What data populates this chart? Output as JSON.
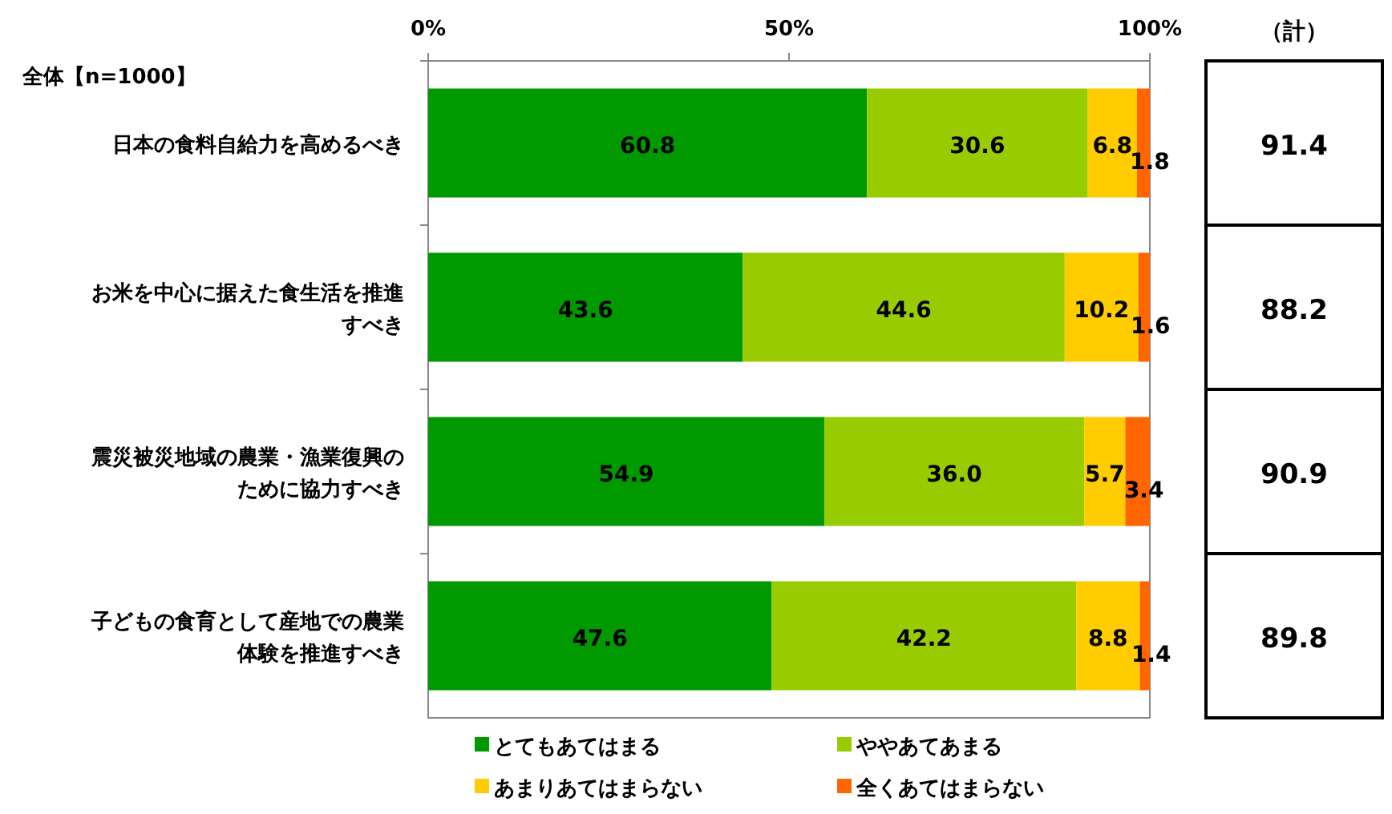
{
  "chart_data": {
    "type": "bar",
    "orientation": "horizontal",
    "stacked": true,
    "legend": "bottom",
    "grid": false,
    "categories": [
      "日本の食料自給力を高めるべき",
      "お米を中心に据えた食生活を推進すべき",
      "震災被災地域の農業・漁業復興のために協力すべき",
      "子どもの食育として産地での農業体験を推進すべき"
    ],
    "series": [
      {
        "name": "とてもあてはまる",
        "color": "#009900",
        "values": [
          60.8,
          43.6,
          54.9,
          47.6
        ],
        "value_labels": [
          "60.8",
          "43.6",
          "54.9",
          "47.6"
        ]
      },
      {
        "name": "ややあてあまる",
        "color": "#99cc00",
        "values": [
          30.6,
          44.6,
          36.0,
          42.2
        ],
        "value_labels": [
          "30.6",
          "44.6",
          "36.0",
          "42.2"
        ]
      },
      {
        "name": "あまりあてはまらない",
        "color": "#ffcc00",
        "values": [
          6.8,
          10.2,
          5.7,
          8.8
        ],
        "value_labels": [
          "6.8",
          "10.2",
          "5.7",
          "8.8"
        ]
      },
      {
        "name": "全くあてはまらない",
        "color": "#ff6600",
        "values": [
          1.8,
          1.6,
          3.4,
          1.4
        ],
        "value_labels": [
          "1.8",
          "1.6",
          "3.4",
          "1.4"
        ]
      }
    ],
    "xlim": [
      0,
      100
    ],
    "xticks": [
      {
        "value": 0,
        "label": "0%"
      },
      {
        "value": 50,
        "label": "50%"
      },
      {
        "value": 100,
        "label": "100%"
      }
    ],
    "annotations": [
      "全体【n=1000】",
      "（計）",
      "91.4",
      "88.2",
      "90.9",
      "89.8"
    ]
  }
}
